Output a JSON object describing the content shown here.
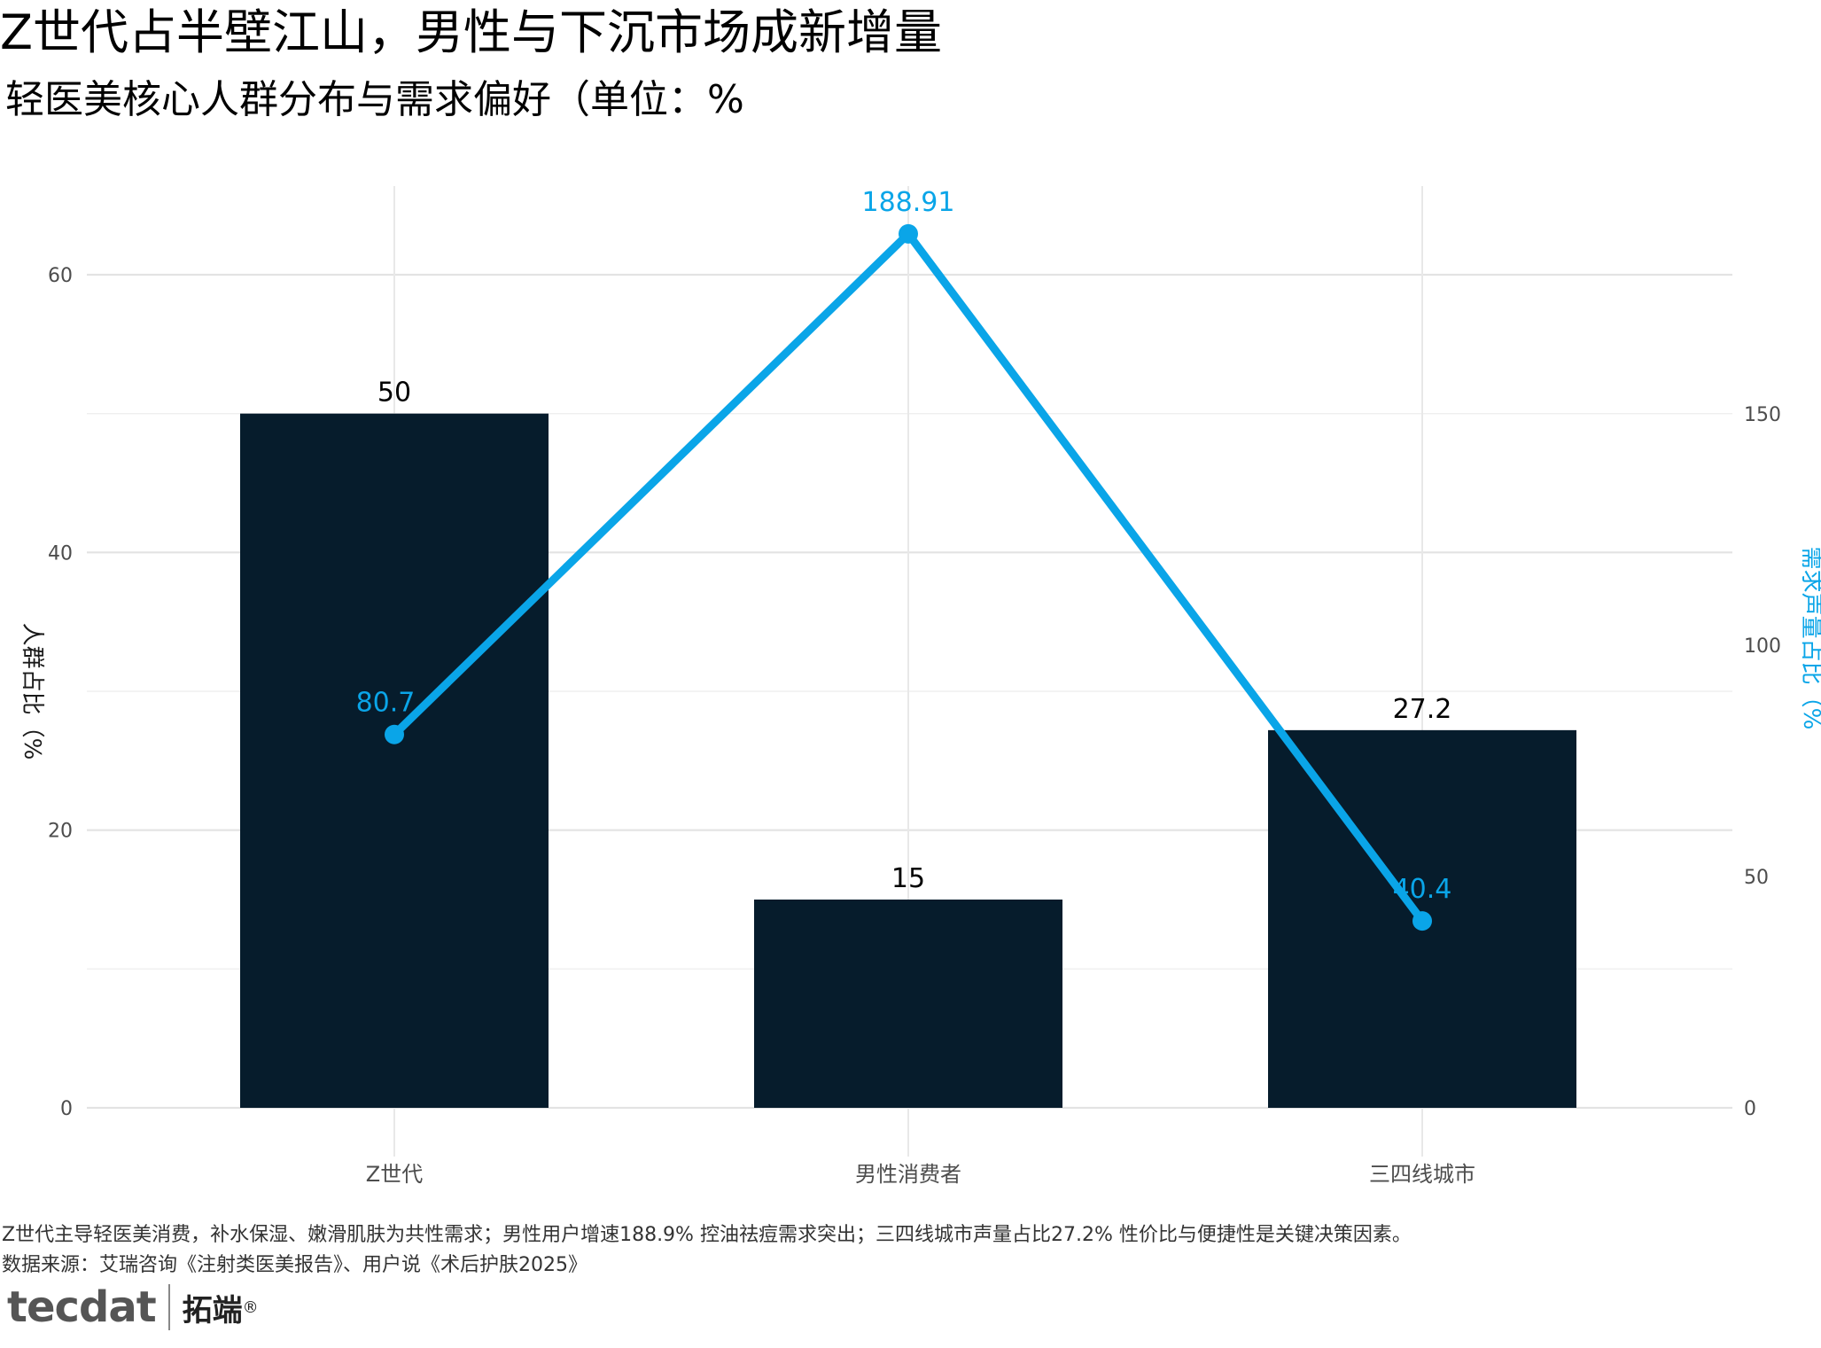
{
  "title": "Z世代占半壁江山，男性与下沉市场成新增量",
  "subtitle": "轻医美核心人群分布与需求偏好（单位：%",
  "chart_data": {
    "type": "bar+line",
    "categories": [
      "Z世代",
      "男性消费者",
      "三四线城市"
    ],
    "series": [
      {
        "name": "",
        "type": "bar",
        "axis": "left",
        "values": [
          50,
          15,
          27.2
        ],
        "labels": [
          "50",
          "15",
          "27.2"
        ],
        "color": "#061c2c"
      },
      {
        "name": "",
        "type": "line",
        "axis": "right",
        "values": [
          80.7,
          188.91,
          40.4
        ],
        "labels": [
          "80.7",
          "188.91",
          "40.4"
        ],
        "color": "#0aa5e8"
      }
    ],
    "ylabel": "人群占比（%",
    "y2label": "需求声量占比（%",
    "ylim": [
      0,
      65
    ],
    "y2lim": [
      0,
      195
    ],
    "yticks": [
      "0",
      "20",
      "40",
      "60"
    ],
    "y2ticks": [
      "0",
      "50",
      "100",
      "150"
    ],
    "grid": true,
    "label_color_bar": "#000000",
    "label_color_line": "#0aa5e8"
  },
  "captions": {
    "note": "Z世代主导轻医美消费，补水保湿、嫩滑肌肤为共性需求；男性用户增速188.9% 控油祛痘需求突出；三四线城市声量占比27.2% 性价比与便捷性是关键决策因素。",
    "source": "数据来源：艾瑞咨询《注射类医美报告》、用户说《术后护肤2025》"
  },
  "logo": {
    "en": "tecdat",
    "cn": "拓端",
    "reg": "®"
  }
}
